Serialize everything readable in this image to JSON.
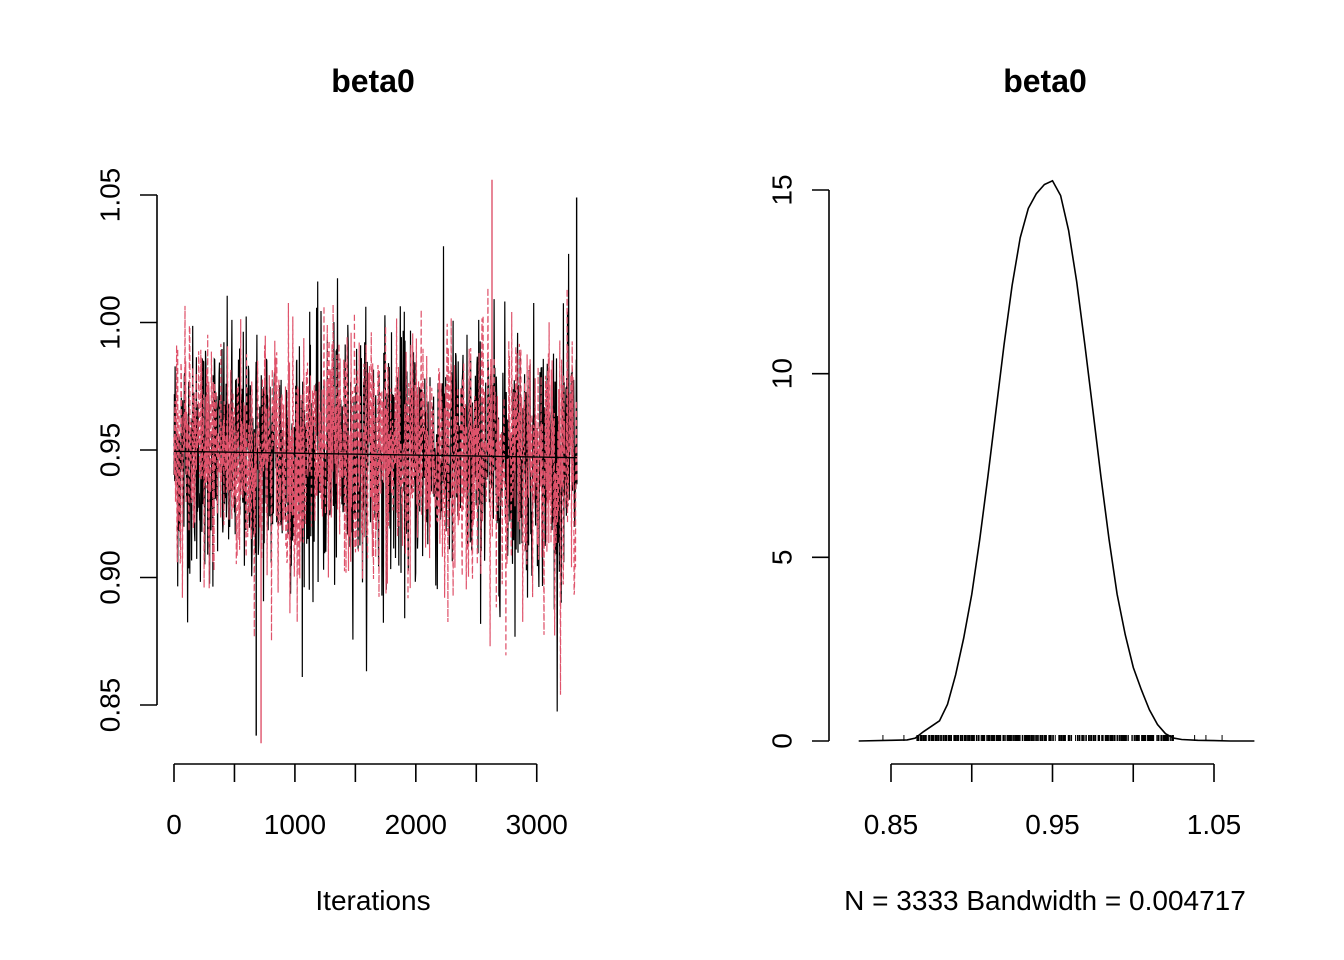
{
  "chart_data": [
    {
      "type": "line",
      "subtype": "mcmc-trace",
      "title": "beta0",
      "xlabel": "Iterations",
      "ylabel": "",
      "xlim": [
        0,
        3333
      ],
      "ylim": [
        0.84,
        1.055
      ],
      "xticks": [
        0,
        500,
        1000,
        1500,
        2000,
        2500,
        3000
      ],
      "xtick_labels": [
        "0",
        "",
        "1000",
        "",
        "2000",
        "",
        "3000"
      ],
      "yticks": [
        0.85,
        0.9,
        0.95,
        1.0,
        1.05
      ],
      "ytick_labels": [
        "0.85",
        "0.90",
        "0.95",
        "1.00",
        "1.05"
      ],
      "series": [
        {
          "color": "#000000",
          "dash": "solid",
          "values_summary": {
            "mean": 0.948,
            "min": 0.838,
            "max": 1.049
          }
        },
        {
          "color": "#DF536B",
          "dash": "dashed",
          "values_summary": {
            "mean": 0.948,
            "min": 0.835,
            "max": 1.056
          }
        }
      ],
      "running_mean": {
        "start": 0.9495,
        "end": 0.947
      },
      "grid": false,
      "legend": "none"
    },
    {
      "type": "line",
      "subtype": "density",
      "title": "beta0",
      "xlabel": "N = 3333   Bandwidth = 0.004717",
      "ylabel": "",
      "xlim": [
        0.83,
        1.08
      ],
      "ylim": [
        0,
        15.3
      ],
      "xticks": [
        0.85,
        0.9,
        0.95,
        1.0,
        1.05
      ],
      "xtick_labels": [
        "0.85",
        "",
        "0.95",
        "",
        "1.05"
      ],
      "yticks": [
        0,
        5,
        10,
        15
      ],
      "ytick_labels": [
        "0",
        "5",
        "10",
        "15"
      ],
      "x": [
        0.83,
        0.85,
        0.86,
        0.865,
        0.87,
        0.875,
        0.88,
        0.885,
        0.89,
        0.895,
        0.9,
        0.905,
        0.91,
        0.915,
        0.92,
        0.925,
        0.93,
        0.935,
        0.94,
        0.945,
        0.95,
        0.955,
        0.96,
        0.965,
        0.97,
        0.975,
        0.98,
        0.985,
        0.99,
        0.995,
        1.0,
        1.005,
        1.01,
        1.015,
        1.02,
        1.025,
        1.03,
        1.04,
        1.05,
        1.06,
        1.075
      ],
      "y": [
        0.0,
        0.02,
        0.03,
        0.08,
        0.25,
        0.4,
        0.55,
        1.0,
        1.8,
        2.8,
        4.0,
        5.5,
        7.2,
        9.0,
        10.8,
        12.4,
        13.7,
        14.5,
        14.9,
        15.15,
        15.25,
        14.85,
        13.9,
        12.5,
        10.8,
        9.0,
        7.2,
        5.5,
        4.0,
        2.9,
        2.0,
        1.4,
        0.85,
        0.45,
        0.2,
        0.08,
        0.04,
        0.02,
        0.01,
        0.0,
        0.0
      ],
      "rug": {
        "min": 0.845,
        "max": 1.055,
        "dense_from": 0.866,
        "dense_to": 1.025
      },
      "grid": false,
      "legend": "none"
    }
  ]
}
